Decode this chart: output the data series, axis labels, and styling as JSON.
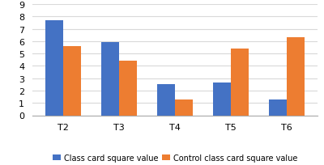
{
  "categories": [
    "T2",
    "T3",
    "T4",
    "T5",
    "T6"
  ],
  "class_values": [
    7.7,
    5.9,
    2.55,
    2.65,
    1.3
  ],
  "control_values": [
    5.6,
    4.45,
    1.25,
    5.4,
    6.35
  ],
  "class_color": "#4472C4",
  "control_color": "#ED7D31",
  "ylim": [
    0,
    9
  ],
  "yticks": [
    0,
    1,
    2,
    3,
    4,
    5,
    6,
    7,
    8,
    9
  ],
  "legend_class": "Class card square value",
  "legend_control": "Control class card square value",
  "bar_width": 0.32,
  "background_color": "#ffffff",
  "grid_color": "#d9d9d9",
  "tick_fontsize": 8,
  "legend_fontsize": 7
}
